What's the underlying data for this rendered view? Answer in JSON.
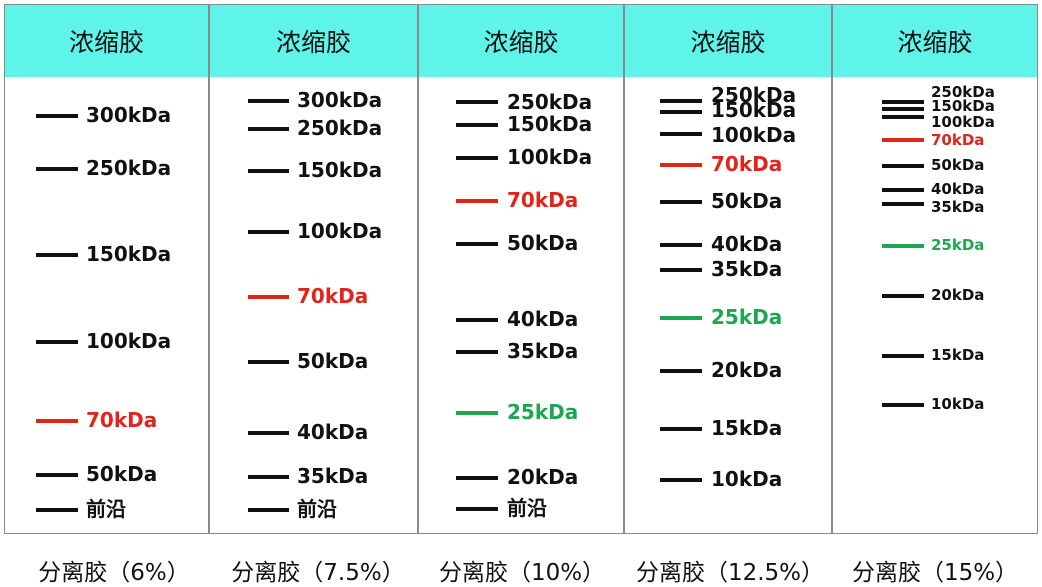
{
  "header_color": "#5ef4ea",
  "colors": {
    "black": "#111111",
    "red": "#e0251b",
    "green": "#1fa651"
  },
  "panels": [
    {
      "header": "浓缩胶",
      "caption": "分离胶（6%）",
      "markers": [
        {
          "label": "300kDa",
          "color": "black"
        },
        {
          "label": "250kDa",
          "color": "black"
        },
        {
          "label": "150kDa",
          "color": "black"
        },
        {
          "label": "100kDa",
          "color": "black"
        },
        {
          "label": "70kDa",
          "color": "red"
        },
        {
          "label": "50kDa",
          "color": "black"
        },
        {
          "label": "前沿",
          "color": "black"
        }
      ]
    },
    {
      "header": "浓缩胶",
      "caption": "分离胶（7.5%）",
      "markers": [
        {
          "label": "300kDa",
          "color": "black"
        },
        {
          "label": "250kDa",
          "color": "black"
        },
        {
          "label": "150kDa",
          "color": "black"
        },
        {
          "label": "100kDa",
          "color": "black"
        },
        {
          "label": "70kDa",
          "color": "red"
        },
        {
          "label": "50kDa",
          "color": "black"
        },
        {
          "label": "40kDa",
          "color": "black"
        },
        {
          "label": "35kDa",
          "color": "black"
        },
        {
          "label": "前沿",
          "color": "black"
        }
      ]
    },
    {
      "header": "浓缩胶",
      "caption": "分离胶（10%）",
      "markers": [
        {
          "label": "250kDa",
          "color": "black"
        },
        {
          "label": "150kDa",
          "color": "black"
        },
        {
          "label": "100kDa",
          "color": "black"
        },
        {
          "label": "70kDa",
          "color": "red"
        },
        {
          "label": "50kDa",
          "color": "black"
        },
        {
          "label": "40kDa",
          "color": "black"
        },
        {
          "label": "35kDa",
          "color": "black"
        },
        {
          "label": "25kDa",
          "color": "green"
        },
        {
          "label": "20kDa",
          "color": "black"
        },
        {
          "label": "前沿",
          "color": "black"
        }
      ]
    },
    {
      "header": "浓缩胶",
      "caption": "分离胶（12.5%）",
      "markers": [
        {
          "label": "250kDa",
          "color": "black"
        },
        {
          "label": "150kDa",
          "color": "black"
        },
        {
          "label": "100kDa",
          "color": "black"
        },
        {
          "label": "70kDa",
          "color": "red"
        },
        {
          "label": "50kDa",
          "color": "black"
        },
        {
          "label": "40kDa",
          "color": "black"
        },
        {
          "label": "35kDa",
          "color": "black"
        },
        {
          "label": "25kDa",
          "color": "green"
        },
        {
          "label": "20kDa",
          "color": "black"
        },
        {
          "label": "15kDa",
          "color": "black"
        },
        {
          "label": "10kDa",
          "color": "black"
        }
      ]
    },
    {
      "header": "浓缩胶",
      "caption": "分离胶（15%）",
      "markers": [
        {
          "label": "250kDa",
          "color": "black"
        },
        {
          "label": "150kDa",
          "color": "black"
        },
        {
          "label": "100kDa",
          "color": "black"
        },
        {
          "label": "70kDa",
          "color": "red"
        },
        {
          "label": "50kDa",
          "color": "black"
        },
        {
          "label": "40kDa",
          "color": "black"
        },
        {
          "label": "35kDa",
          "color": "black"
        },
        {
          "label": "25kDa",
          "color": "green"
        },
        {
          "label": "20kDa",
          "color": "black"
        },
        {
          "label": "15kDa",
          "color": "black"
        },
        {
          "label": "10kDa",
          "color": "black"
        }
      ]
    }
  ]
}
